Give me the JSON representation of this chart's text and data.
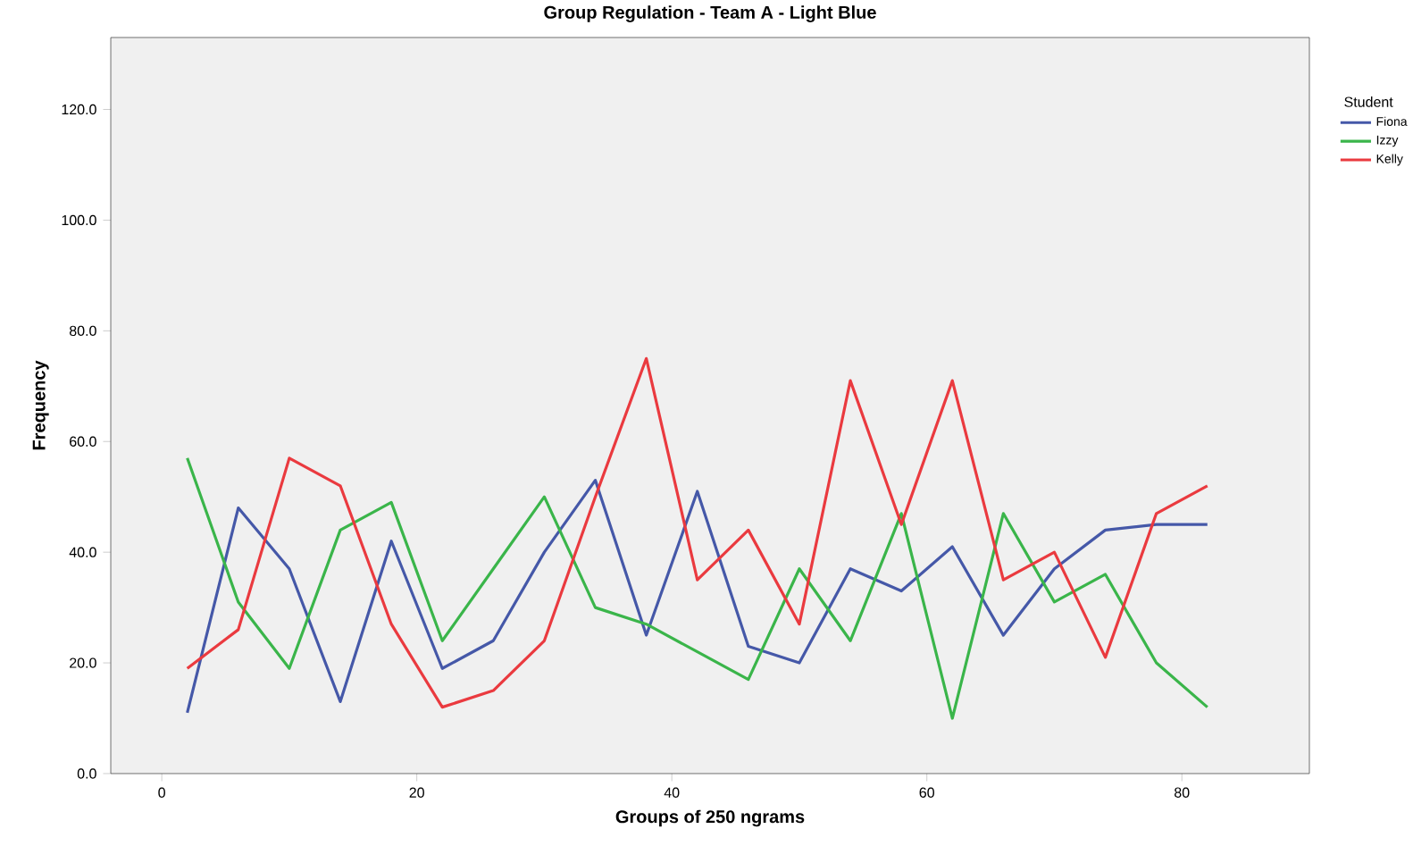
{
  "chart_data": {
    "type": "line",
    "title": "Group Regulation - Team A - Light Blue",
    "xlabel": "Groups of 250 ngrams",
    "ylabel": "Frequency",
    "legend_title": "Student",
    "legend": "right",
    "x": [
      2,
      6,
      10,
      14,
      18,
      22,
      26,
      30,
      34,
      38,
      42,
      46,
      50,
      54,
      58,
      62,
      66,
      70,
      74,
      78,
      82
    ],
    "series": [
      {
        "name": "Fiona",
        "color": "#4558a8",
        "values": [
          11,
          48,
          37,
          13,
          42,
          19,
          24,
          40,
          53,
          25,
          51,
          23,
          20,
          37,
          33,
          41,
          25,
          37,
          44,
          45,
          45
        ]
      },
      {
        "name": "Izzy",
        "color": "#3ab54a",
        "values": [
          57,
          31,
          19,
          44,
          49,
          24,
          37,
          50,
          30,
          27,
          22,
          17,
          37,
          24,
          47,
          10,
          47,
          31,
          36,
          20,
          12
        ]
      },
      {
        "name": "Kelly",
        "color": "#ea3a3f",
        "values": [
          19,
          26,
          57,
          52,
          27,
          12,
          15,
          24,
          50,
          75,
          35,
          44,
          27,
          71,
          45,
          71,
          35,
          40,
          21,
          47,
          52
        ]
      }
    ],
    "xlim": [
      -4,
      90
    ],
    "ylim": [
      0,
      133
    ],
    "xticks": [
      0,
      20,
      40,
      60,
      80
    ],
    "yticks": [
      {
        "value": 0,
        "label": "0.0"
      },
      {
        "value": 20,
        "label": "20.0"
      },
      {
        "value": 40,
        "label": "40.0"
      },
      {
        "value": 60,
        "label": "60.0"
      },
      {
        "value": 80,
        "label": "80.0"
      },
      {
        "value": 100,
        "label": "100.0"
      },
      {
        "value": 120,
        "label": "120.0"
      }
    ],
    "grid": false,
    "marker": "none",
    "line_style": "solid"
  }
}
